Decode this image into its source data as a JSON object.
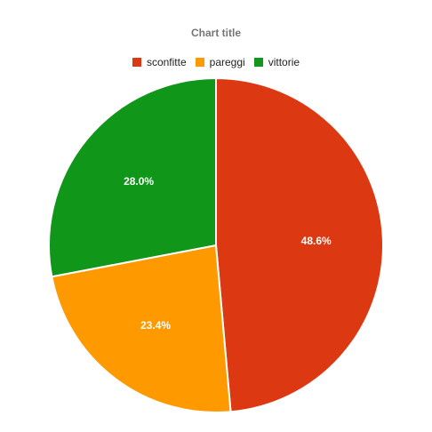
{
  "chart_data": {
    "type": "pie",
    "title": "Chart title",
    "categories": [
      "sconfitte",
      "pareggi",
      "vittorie"
    ],
    "values": [
      48.6,
      23.4,
      28.0
    ],
    "value_labels": [
      "48.6%",
      "23.4%",
      "28.0%"
    ],
    "colors": [
      "#dc3912",
      "#ff9900",
      "#109618"
    ],
    "legend_position": "top",
    "start_angle_deg": 0,
    "direction": "clockwise"
  }
}
